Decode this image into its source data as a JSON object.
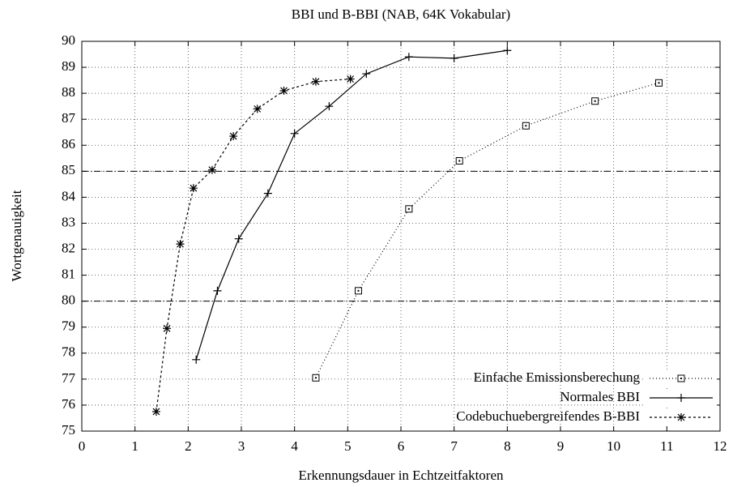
{
  "chart_data": {
    "type": "line",
    "title": "BBI und B-BBI (NAB, 64K Vokabular)",
    "x_label": "Erkennungsdauer in Echtzeitfaktoren",
    "y_label": "Wortgenauigkeit",
    "xlim": [
      0,
      12
    ],
    "xticks": [
      0,
      1,
      2,
      3,
      4,
      5,
      6,
      7,
      8,
      9,
      10,
      11,
      12
    ],
    "ylim": [
      75,
      90
    ],
    "yticks": [
      75,
      76,
      77,
      78,
      79,
      80,
      81,
      82,
      83,
      84,
      85,
      86,
      87,
      88,
      89,
      90
    ],
    "grid": true,
    "reference_lines": [
      80,
      85
    ],
    "legend": "lower right",
    "series": [
      {
        "name": "Einfache Emissionsberechung",
        "color": "#000000",
        "marker": "square",
        "dash": "dotted",
        "x": [
          4.4,
          5.2,
          6.15,
          7.1,
          8.35,
          9.65,
          10.85
        ],
        "values": [
          77.05,
          80.4,
          83.55,
          85.4,
          86.75,
          87.7,
          88.4
        ]
      },
      {
        "name": "Normales BBI",
        "color": "#000000",
        "marker": "plus",
        "dash": "solid",
        "x": [
          2.15,
          2.55,
          2.95,
          3.5,
          4.0,
          4.65,
          5.35,
          6.15,
          7.0,
          8.0
        ],
        "values": [
          77.75,
          80.4,
          82.4,
          84.15,
          86.45,
          87.5,
          88.75,
          89.4,
          89.35,
          89.65
        ]
      },
      {
        "name": "Codebuchuebergreifendes B-BBI",
        "color": "#000000",
        "marker": "star",
        "dash": "dashed",
        "x": [
          1.4,
          1.6,
          1.85,
          2.1,
          2.45,
          2.85,
          3.3,
          3.8,
          4.4,
          5.05
        ],
        "values": [
          75.75,
          78.95,
          82.2,
          84.35,
          85.05,
          86.35,
          87.4,
          88.1,
          88.45,
          88.55
        ]
      }
    ]
  }
}
